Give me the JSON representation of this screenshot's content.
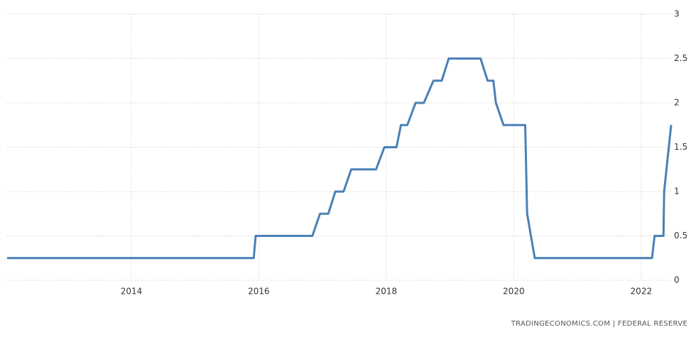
{
  "chart_data": {
    "type": "line",
    "source": "TRADINGECONOMICS.COM | FEDERAL RESERVE",
    "x": [
      2012.05,
      2015.92,
      2015.95,
      2016.84,
      2016.96,
      2017.09,
      2017.2,
      2017.33,
      2017.45,
      2017.84,
      2017.97,
      2018.16,
      2018.23,
      2018.33,
      2018.46,
      2018.59,
      2018.74,
      2018.87,
      2018.98,
      2019.48,
      2019.59,
      2019.68,
      2019.72,
      2019.84,
      2020.18,
      2020.21,
      2020.33,
      2022.17,
      2022.21,
      2022.35,
      2022.36,
      2022.47
    ],
    "values": [
      0.25,
      0.25,
      0.5,
      0.5,
      0.75,
      0.75,
      1,
      1,
      1.25,
      1.25,
      1.5,
      1.5,
      1.75,
      1.75,
      2,
      2,
      2.25,
      2.25,
      2.5,
      2.5,
      2.25,
      2.25,
      2,
      1.75,
      1.75,
      0.75,
      0.25,
      0.25,
      0.5,
      0.5,
      1,
      1.75
    ],
    "color": "#4a80b6",
    "xlim": [
      2012.05,
      2022.47
    ],
    "xticks": [
      2014,
      2016,
      2018,
      2020,
      2022
    ],
    "ylim": [
      0,
      3
    ],
    "yticks": [
      0,
      0.5,
      1,
      1.5,
      2,
      2.5,
      3
    ],
    "grid": true
  }
}
